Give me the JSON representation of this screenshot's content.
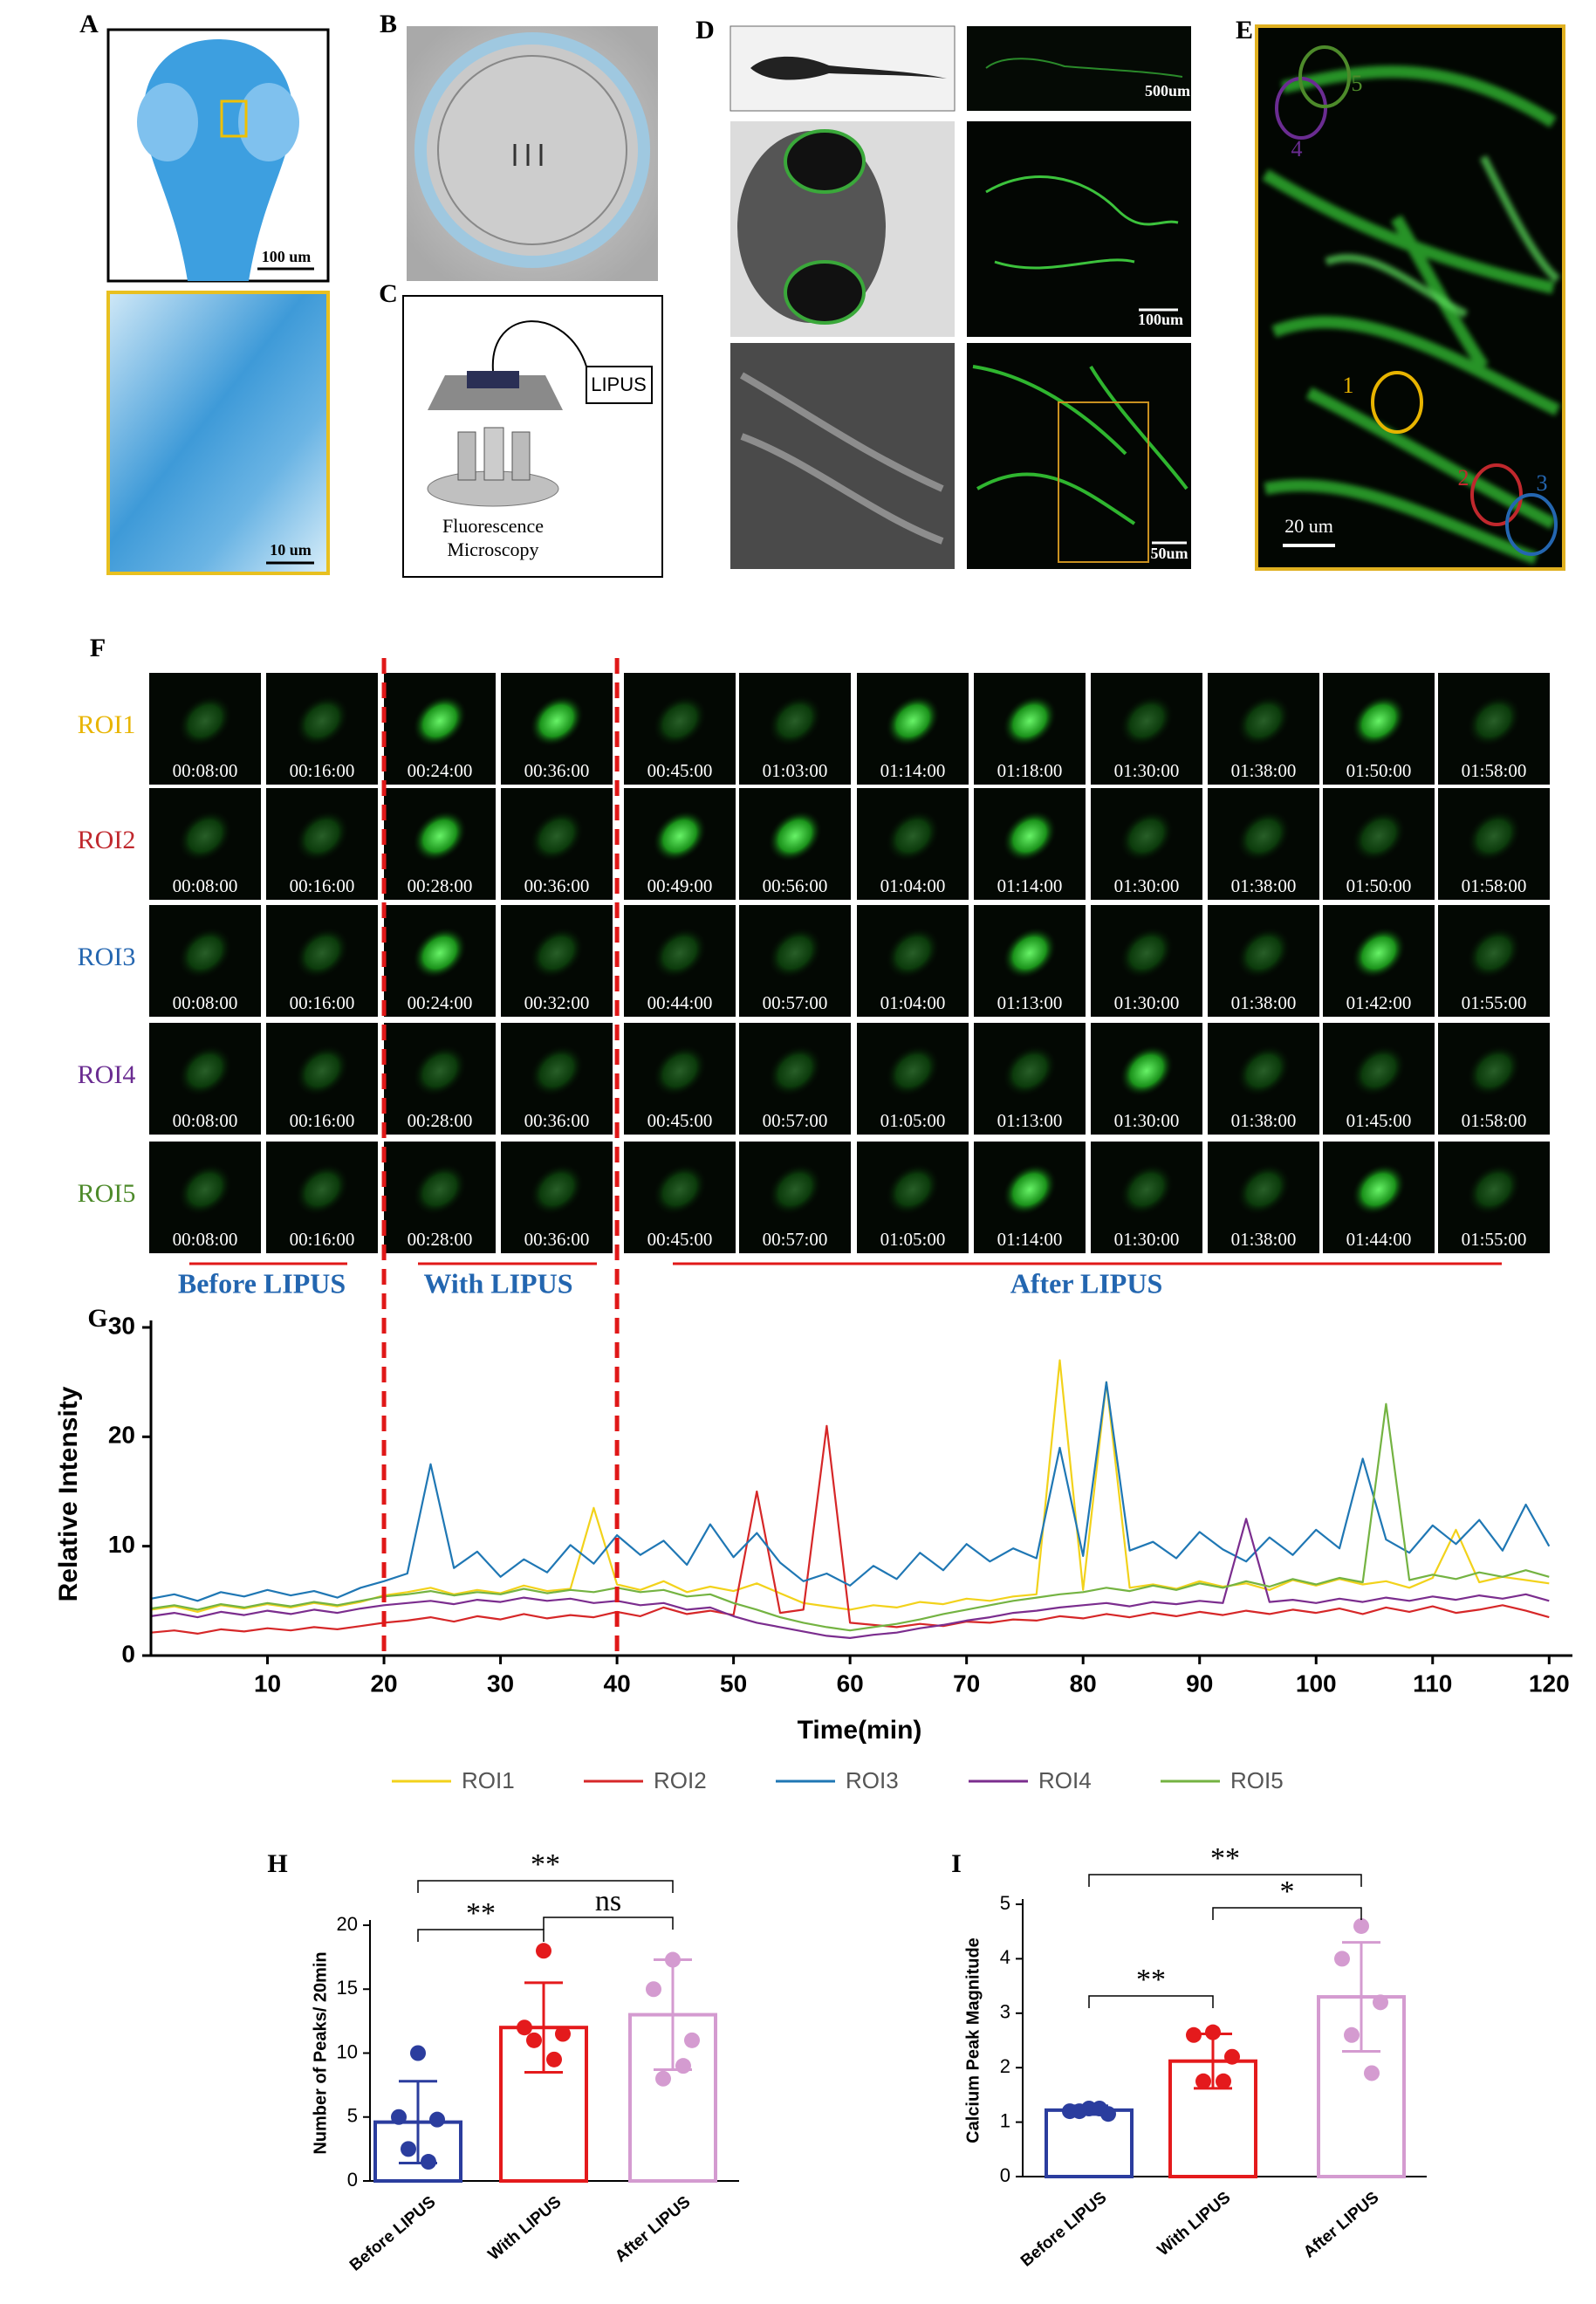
{
  "panel_labels": [
    "A",
    "B",
    "C",
    "D",
    "E",
    "F",
    "G",
    "H",
    "I"
  ],
  "panels": {
    "A": {
      "scale_bars": [
        "100 um",
        "10 um"
      ]
    },
    "C": {
      "device": "LIPUS",
      "microscope": [
        "Fluorescence",
        "Microscopy"
      ]
    },
    "D": {
      "scale_bars": [
        "500um",
        "100um",
        "50um"
      ]
    },
    "E": {
      "rois": [
        "1",
        "2",
        "3",
        "4",
        "5"
      ],
      "scale_bar": "20 um"
    },
    "F": {
      "rows": [
        {
          "name": "ROI1",
          "color": "#e8b400",
          "times": [
            "00:08:00",
            "00:16:00",
            "00:24:00",
            "00:36:00",
            "00:45:00",
            "01:03:00",
            "01:14:00",
            "01:18:00",
            "01:30:00",
            "01:38:00",
            "01:50:00",
            "01:58:00"
          ]
        },
        {
          "name": "ROI2",
          "color": "#c0282d",
          "times": [
            "00:08:00",
            "00:16:00",
            "00:28:00",
            "00:36:00",
            "00:49:00",
            "00:56:00",
            "01:04:00",
            "01:14:00",
            "01:30:00",
            "01:38:00",
            "01:50:00",
            "01:58:00"
          ]
        },
        {
          "name": "ROI3",
          "color": "#2466b0",
          "times": [
            "00:08:00",
            "00:16:00",
            "00:24:00",
            "00:32:00",
            "00:44:00",
            "00:57:00",
            "01:04:00",
            "01:13:00",
            "01:30:00",
            "01:38:00",
            "01:42:00",
            "01:55:00"
          ]
        },
        {
          "name": "ROI4",
          "color": "#6a2c91",
          "times": [
            "00:08:00",
            "00:16:00",
            "00:28:00",
            "00:36:00",
            "00:45:00",
            "00:57:00",
            "01:05:00",
            "01:13:00",
            "01:30:00",
            "01:38:00",
            "01:45:00",
            "01:58:00"
          ]
        },
        {
          "name": "ROI5",
          "color": "#4d8a2a",
          "times": [
            "00:08:00",
            "00:16:00",
            "00:28:00",
            "00:36:00",
            "00:45:00",
            "00:57:00",
            "01:05:00",
            "01:14:00",
            "01:30:00",
            "01:38:00",
            "01:44:00",
            "01:55:00"
          ]
        }
      ]
    }
  },
  "chart_data": [
    {
      "type": "line",
      "xlabel": "Time(min)",
      "ylabel": "Relative Intensity",
      "annotations": [
        "Before LIPUS",
        "With LIPUS",
        "After LIPUS"
      ],
      "vlines": [
        20,
        40
      ],
      "x": [
        0,
        2,
        4,
        6,
        8,
        10,
        12,
        14,
        16,
        18,
        20,
        22,
        24,
        26,
        28,
        30,
        32,
        34,
        36,
        38,
        40,
        42,
        44,
        46,
        48,
        50,
        52,
        54,
        56,
        58,
        60,
        62,
        64,
        66,
        68,
        70,
        72,
        74,
        76,
        78,
        80,
        82,
        84,
        86,
        88,
        90,
        92,
        94,
        96,
        98,
        100,
        102,
        104,
        106,
        108,
        110,
        112,
        114,
        116,
        118,
        120
      ],
      "series": [
        {
          "name": "ROI1",
          "color": "#f2d21b",
          "values": [
            4.2,
            4.5,
            4.0,
            4.6,
            4.3,
            4.7,
            4.4,
            4.8,
            4.5,
            4.9,
            5.5,
            5.8,
            6.2,
            5.6,
            6.0,
            5.7,
            6.4,
            5.9,
            6.1,
            13.5,
            6.5,
            6.0,
            6.8,
            5.8,
            6.3,
            5.9,
            6.6,
            5.7,
            4.8,
            4.5,
            4.2,
            4.6,
            4.4,
            4.9,
            4.7,
            5.2,
            5.0,
            5.4,
            5.6,
            27.0,
            6.0,
            25.0,
            6.2,
            6.5,
            6.1,
            6.8,
            6.3,
            6.6,
            6.0,
            6.9,
            6.4,
            7.0,
            6.5,
            6.8,
            6.2,
            7.1,
            11.5,
            6.7,
            7.2,
            6.9,
            6.6
          ]
        },
        {
          "name": "ROI2",
          "color": "#d62728",
          "values": [
            2.1,
            2.3,
            2.0,
            2.4,
            2.2,
            2.5,
            2.3,
            2.6,
            2.4,
            2.7,
            3.0,
            3.2,
            3.5,
            3.1,
            3.6,
            3.3,
            3.8,
            3.4,
            3.7,
            3.5,
            4.0,
            3.6,
            4.4,
            3.8,
            4.1,
            3.7,
            15.0,
            3.9,
            4.2,
            21.0,
            3.0,
            2.8,
            2.6,
            2.9,
            2.7,
            3.1,
            3.0,
            3.3,
            3.2,
            3.6,
            3.4,
            3.8,
            3.5,
            3.9,
            3.6,
            4.0,
            3.7,
            4.1,
            3.8,
            4.2,
            3.9,
            4.3,
            3.8,
            4.4,
            4.0,
            4.5,
            3.9,
            4.2,
            4.6,
            4.1,
            3.5
          ]
        },
        {
          "name": "ROI3",
          "color": "#1f77b4",
          "values": [
            5.2,
            5.6,
            5.0,
            5.8,
            5.4,
            6.0,
            5.5,
            5.9,
            5.3,
            6.2,
            6.8,
            7.5,
            17.5,
            8.0,
            9.5,
            7.2,
            8.8,
            7.6,
            10.1,
            8.4,
            11.0,
            9.2,
            10.5,
            8.3,
            12.0,
            9.0,
            11.2,
            8.5,
            6.8,
            7.5,
            6.4,
            8.2,
            7.0,
            9.4,
            7.8,
            10.2,
            8.6,
            9.8,
            8.9,
            19.0,
            9.1,
            25.0,
            9.6,
            10.4,
            8.9,
            11.3,
            9.7,
            8.6,
            10.8,
            9.2,
            11.5,
            9.8,
            18.0,
            10.6,
            9.4,
            11.9,
            10.2,
            12.4,
            9.6,
            13.8,
            10.0
          ]
        },
        {
          "name": "ROI4",
          "color": "#7b2d8e",
          "values": [
            3.6,
            3.9,
            3.5,
            4.0,
            3.7,
            4.1,
            3.8,
            4.2,
            3.9,
            4.3,
            4.6,
            4.8,
            5.0,
            4.7,
            5.1,
            4.9,
            5.3,
            5.0,
            5.2,
            4.8,
            5.0,
            4.6,
            4.8,
            4.2,
            4.4,
            3.6,
            3.0,
            2.6,
            2.2,
            1.8,
            1.6,
            1.9,
            2.1,
            2.5,
            2.8,
            3.2,
            3.5,
            3.9,
            4.1,
            4.4,
            4.6,
            4.8,
            4.5,
            4.9,
            4.7,
            5.0,
            4.8,
            12.5,
            4.9,
            5.1,
            4.8,
            5.2,
            4.9,
            5.3,
            5.0,
            5.4,
            5.1,
            5.5,
            5.2,
            5.6,
            5.0
          ]
        },
        {
          "name": "ROI5",
          "color": "#74b342",
          "values": [
            4.3,
            4.6,
            4.2,
            4.7,
            4.4,
            4.8,
            4.5,
            4.9,
            4.6,
            5.0,
            5.4,
            5.6,
            5.9,
            5.5,
            5.8,
            5.6,
            6.1,
            5.7,
            6.0,
            5.8,
            6.2,
            5.8,
            6.0,
            5.4,
            5.6,
            4.8,
            4.2,
            3.5,
            3.0,
            2.6,
            2.3,
            2.6,
            2.9,
            3.3,
            3.8,
            4.2,
            4.6,
            5.0,
            5.3,
            5.6,
            5.8,
            6.2,
            5.9,
            6.4,
            6.0,
            6.6,
            6.2,
            6.8,
            6.3,
            7.0,
            6.5,
            7.1,
            6.7,
            23.0,
            6.9,
            7.4,
            7.0,
            7.6,
            7.2,
            7.8,
            7.2
          ]
        }
      ],
      "xlim": [
        0,
        122
      ],
      "ylim": [
        0,
        30
      ],
      "xticks": [
        10,
        20,
        30,
        40,
        50,
        60,
        70,
        80,
        90,
        100,
        110,
        120
      ],
      "yticks": [
        0,
        10,
        20,
        30
      ]
    },
    {
      "type": "bar",
      "ylabel": "Number of Peaks/ 20min",
      "categories": [
        "Before LIPUS",
        "With LIPUS",
        "After LIPUS"
      ],
      "colors": [
        "#2b3d9e",
        "#e41a1c",
        "#d49bd0"
      ],
      "values": [
        4.6,
        12.0,
        13.0
      ],
      "errors": [
        3.2,
        3.5,
        4.3
      ],
      "points": [
        [
          10,
          5,
          4.8,
          2.5,
          1.5
        ],
        [
          18,
          12,
          11.5,
          11,
          9.5
        ],
        [
          17.3,
          15,
          11,
          8,
          9
        ]
      ],
      "significance": [
        "**",
        "**",
        "ns"
      ],
      "ylim": [
        0,
        20
      ],
      "yticks": [
        0,
        5,
        10,
        15,
        20
      ]
    },
    {
      "type": "bar",
      "ylabel": "Calcium Peak Magnitude",
      "categories": [
        "Before LIPUS",
        "With LIPUS",
        "After LIPUS"
      ],
      "colors": [
        "#2b3d9e",
        "#e41a1c",
        "#d49bd0"
      ],
      "values": [
        1.22,
        2.12,
        3.3
      ],
      "errors": [
        0.08,
        0.5,
        1.0
      ],
      "points": [
        [
          1.25,
          1.2,
          1.15,
          1.2,
          1.25
        ],
        [
          2.65,
          2.6,
          2.2,
          1.75,
          1.75
        ],
        [
          4.6,
          4.0,
          3.2,
          2.6,
          1.9
        ]
      ],
      "significance": [
        "**",
        "*",
        "**"
      ],
      "ylim": [
        0,
        5
      ],
      "yticks": [
        0,
        1,
        2,
        3,
        4,
        5
      ]
    }
  ]
}
